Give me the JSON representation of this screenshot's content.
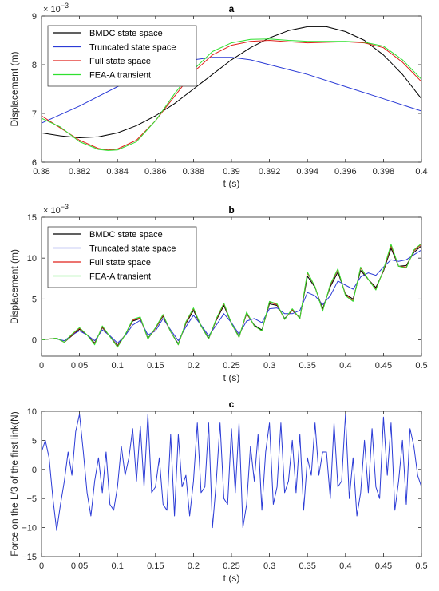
{
  "chart_data": [
    {
      "type": "line",
      "title": "a",
      "xlabel": "t (s)",
      "ylabel": "Displacement (m)",
      "y_exponent_label": "× 10",
      "y_exponent_power": "−3",
      "xlim": [
        0.38,
        0.4
      ],
      "ylim": [
        6,
        9
      ],
      "xticks": [
        "0.38",
        "0.382",
        "0.384",
        "0.386",
        "0.388",
        "0.39",
        "0.392",
        "0.394",
        "0.396",
        "0.398",
        "0.4"
      ],
      "yticks": [
        "6",
        "7",
        "8",
        "9"
      ],
      "grid": false,
      "legend_position": "top-left",
      "series": [
        {
          "name": "BMDC state space",
          "color": "#000000",
          "x": [
            0.38,
            0.381,
            0.382,
            0.383,
            0.384,
            0.385,
            0.386,
            0.387,
            0.388,
            0.389,
            0.39,
            0.391,
            0.392,
            0.393,
            0.394,
            0.395,
            0.396,
            0.397,
            0.398,
            0.399,
            0.4
          ],
          "y": [
            6.6,
            6.54,
            6.5,
            6.52,
            6.6,
            6.75,
            6.95,
            7.2,
            7.5,
            7.8,
            8.1,
            8.35,
            8.55,
            8.7,
            8.78,
            8.78,
            8.68,
            8.5,
            8.2,
            7.8,
            7.3
          ]
        },
        {
          "name": "Truncated state space",
          "color": "#2b3bd6",
          "x": [
            0.38,
            0.382,
            0.384,
            0.386,
            0.388,
            0.389,
            0.39,
            0.391,
            0.392,
            0.394,
            0.396,
            0.398,
            0.4
          ],
          "y": [
            6.8,
            7.15,
            7.55,
            7.9,
            8.1,
            8.15,
            8.15,
            8.1,
            8.0,
            7.8,
            7.55,
            7.3,
            7.05
          ]
        },
        {
          "name": "Full state space",
          "color": "#e0201b",
          "x": [
            0.38,
            0.381,
            0.382,
            0.383,
            0.3835,
            0.384,
            0.385,
            0.386,
            0.387,
            0.388,
            0.389,
            0.39,
            0.391,
            0.392,
            0.393,
            0.394,
            0.395,
            0.396,
            0.397,
            0.398,
            0.399,
            0.4
          ],
          "y": [
            6.95,
            6.7,
            6.45,
            6.28,
            6.25,
            6.27,
            6.45,
            6.85,
            7.35,
            7.85,
            8.2,
            8.4,
            8.48,
            8.5,
            8.47,
            8.45,
            8.46,
            8.47,
            8.45,
            8.35,
            8.05,
            7.65
          ]
        },
        {
          "name": "FEA-A transient",
          "color": "#2fe02f",
          "x": [
            0.38,
            0.381,
            0.382,
            0.383,
            0.3835,
            0.384,
            0.385,
            0.386,
            0.387,
            0.388,
            0.389,
            0.39,
            0.391,
            0.392,
            0.393,
            0.394,
            0.395,
            0.396,
            0.397,
            0.398,
            0.399,
            0.4
          ],
          "y": [
            6.9,
            6.72,
            6.42,
            6.26,
            6.24,
            6.25,
            6.42,
            6.85,
            7.4,
            7.9,
            8.27,
            8.45,
            8.52,
            8.53,
            8.5,
            8.48,
            8.48,
            8.48,
            8.46,
            8.38,
            8.1,
            7.7
          ]
        }
      ]
    },
    {
      "type": "line",
      "title": "b",
      "xlabel": "t (s)",
      "ylabel": "Displacement (m)",
      "y_exponent_label": "× 10",
      "y_exponent_power": "−3",
      "xlim": [
        0,
        0.5
      ],
      "ylim": [
        -2,
        15
      ],
      "xticks": [
        "0",
        "0.05",
        "0.1",
        "0.15",
        "0.2",
        "0.25",
        "0.3",
        "0.35",
        "0.4",
        "0.45",
        "0.5"
      ],
      "yticks": [
        "0",
        "5",
        "10",
        "15"
      ],
      "grid": false,
      "legend_position": "top-left",
      "series": [
        {
          "name": "BMDC state space",
          "color": "#000000",
          "x": [
            0,
            0.01,
            0.02,
            0.03,
            0.04,
            0.05,
            0.06,
            0.07,
            0.08,
            0.09,
            0.1,
            0.11,
            0.12,
            0.13,
            0.14,
            0.15,
            0.16,
            0.17,
            0.18,
            0.19,
            0.2,
            0.21,
            0.22,
            0.23,
            0.24,
            0.25,
            0.26,
            0.27,
            0.28,
            0.29,
            0.3,
            0.31,
            0.32,
            0.33,
            0.34,
            0.35,
            0.36,
            0.37,
            0.38,
            0.39,
            0.4,
            0.41,
            0.42,
            0.43,
            0.44,
            0.45,
            0.46,
            0.47,
            0.48,
            0.49,
            0.5
          ],
          "y": [
            0,
            0.1,
            0.2,
            -0.3,
            0.5,
            1.3,
            0.6,
            -0.4,
            1.5,
            0.4,
            -0.7,
            0.6,
            2.3,
            2.6,
            0.2,
            1.4,
            2.9,
            1.0,
            -0.5,
            2.0,
            3.6,
            1.7,
            0.2,
            2.4,
            4.2,
            2.0,
            0.4,
            3.2,
            1.8,
            1.2,
            4.4,
            4.2,
            2.6,
            3.6,
            2.7,
            7.8,
            6.4,
            3.8,
            6.5,
            8.3,
            5.6,
            5.0,
            8.5,
            7.4,
            6.4,
            8.4,
            11.2,
            9.0,
            9.1,
            10.7,
            11.5
          ]
        },
        {
          "name": "Truncated state space",
          "color": "#2b3bd6",
          "x": [
            0,
            0.01,
            0.02,
            0.03,
            0.04,
            0.05,
            0.06,
            0.07,
            0.08,
            0.09,
            0.1,
            0.11,
            0.12,
            0.13,
            0.14,
            0.15,
            0.16,
            0.17,
            0.18,
            0.19,
            0.2,
            0.21,
            0.22,
            0.23,
            0.24,
            0.25,
            0.26,
            0.27,
            0.28,
            0.29,
            0.3,
            0.31,
            0.32,
            0.33,
            0.34,
            0.35,
            0.36,
            0.37,
            0.38,
            0.39,
            0.4,
            0.41,
            0.42,
            0.43,
            0.44,
            0.45,
            0.46,
            0.47,
            0.48,
            0.49,
            0.5
          ],
          "y": [
            0,
            0.1,
            0.1,
            -0.1,
            0.6,
            1.1,
            0.6,
            -0.1,
            1.2,
            0.5,
            -0.4,
            0.5,
            1.8,
            2.4,
            0.6,
            1.1,
            2.6,
            1.2,
            -0.1,
            1.6,
            3.0,
            1.8,
            0.5,
            1.8,
            3.2,
            2.1,
            0.7,
            2.3,
            2.6,
            2.1,
            3.8,
            3.9,
            3.2,
            3.2,
            3.6,
            5.8,
            5.4,
            4.3,
            5.4,
            7.2,
            6.7,
            6.2,
            7.7,
            8.2,
            7.9,
            8.9,
            9.8,
            9.6,
            9.8,
            10.4,
            11.0
          ]
        },
        {
          "name": "Full state space",
          "color": "#e0201b",
          "x": [
            0,
            0.01,
            0.02,
            0.03,
            0.04,
            0.05,
            0.06,
            0.07,
            0.08,
            0.09,
            0.1,
            0.11,
            0.12,
            0.13,
            0.14,
            0.15,
            0.16,
            0.17,
            0.18,
            0.19,
            0.2,
            0.21,
            0.22,
            0.23,
            0.24,
            0.25,
            0.26,
            0.27,
            0.28,
            0.29,
            0.3,
            0.31,
            0.32,
            0.33,
            0.34,
            0.35,
            0.36,
            0.37,
            0.38,
            0.39,
            0.4,
            0.41,
            0.42,
            0.43,
            0.44,
            0.45,
            0.46,
            0.47,
            0.48,
            0.49,
            0.5
          ],
          "y": [
            0,
            0.1,
            0.2,
            -0.3,
            0.6,
            1.4,
            0.6,
            -0.5,
            1.6,
            0.4,
            -0.8,
            0.6,
            2.4,
            2.7,
            0.1,
            1.4,
            3.0,
            1.0,
            -0.6,
            2.1,
            3.8,
            1.7,
            0.1,
            2.5,
            4.4,
            2.0,
            0.3,
            3.3,
            1.7,
            1.1,
            4.6,
            4.3,
            2.5,
            3.7,
            2.6,
            8.2,
            6.5,
            3.6,
            6.7,
            8.6,
            5.5,
            4.8,
            8.8,
            7.4,
            6.2,
            8.5,
            11.5,
            9.0,
            8.9,
            10.9,
            11.7
          ]
        },
        {
          "name": "FEA-A transient",
          "color": "#2fe02f",
          "x": [
            0,
            0.01,
            0.02,
            0.03,
            0.04,
            0.05,
            0.06,
            0.07,
            0.08,
            0.09,
            0.1,
            0.11,
            0.12,
            0.13,
            0.14,
            0.15,
            0.16,
            0.17,
            0.18,
            0.19,
            0.2,
            0.21,
            0.22,
            0.23,
            0.24,
            0.25,
            0.26,
            0.27,
            0.28,
            0.29,
            0.3,
            0.31,
            0.32,
            0.33,
            0.34,
            0.35,
            0.36,
            0.37,
            0.38,
            0.39,
            0.4,
            0.41,
            0.42,
            0.43,
            0.44,
            0.45,
            0.46,
            0.47,
            0.48,
            0.49,
            0.5
          ],
          "y": [
            0,
            0.1,
            0.2,
            -0.3,
            0.7,
            1.5,
            0.6,
            -0.6,
            1.7,
            0.4,
            -0.9,
            0.6,
            2.5,
            2.8,
            0.1,
            1.5,
            3.1,
            1.0,
            -0.6,
            2.2,
            3.9,
            1.7,
            0.1,
            2.6,
            4.5,
            2.0,
            0.3,
            3.4,
            1.7,
            1.1,
            4.7,
            4.4,
            2.5,
            3.8,
            2.6,
            8.3,
            6.5,
            3.5,
            6.8,
            8.7,
            5.4,
            4.7,
            8.9,
            7.4,
            6.1,
            8.6,
            11.7,
            9.0,
            8.8,
            11.0,
            11.8
          ]
        }
      ]
    },
    {
      "type": "line",
      "title": "c",
      "xlabel": "t (s)",
      "ylabel": "Force on the L/3 of the first link(N)",
      "xlim": [
        0,
        0.5
      ],
      "ylim": [
        -15,
        10
      ],
      "xticks": [
        "0",
        "0.05",
        "0.1",
        "0.15",
        "0.2",
        "0.25",
        "0.3",
        "0.35",
        "0.4",
        "0.45",
        "0.5"
      ],
      "yticks": [
        "-15",
        "-10",
        "-5",
        "0",
        "5",
        "10"
      ],
      "grid": false,
      "series": [
        {
          "color": "#2b3bd6",
          "x": [
            0,
            0.005,
            0.01,
            0.015,
            0.02,
            0.025,
            0.03,
            0.035,
            0.04,
            0.045,
            0.05,
            0.055,
            0.06,
            0.065,
            0.07,
            0.075,
            0.08,
            0.085,
            0.09,
            0.095,
            0.1,
            0.105,
            0.11,
            0.115,
            0.12,
            0.125,
            0.13,
            0.135,
            0.14,
            0.145,
            0.15,
            0.155,
            0.16,
            0.165,
            0.17,
            0.175,
            0.18,
            0.185,
            0.19,
            0.195,
            0.2,
            0.205,
            0.21,
            0.215,
            0.22,
            0.225,
            0.23,
            0.235,
            0.24,
            0.245,
            0.25,
            0.255,
            0.26,
            0.265,
            0.27,
            0.275,
            0.28,
            0.285,
            0.29,
            0.295,
            0.3,
            0.305,
            0.31,
            0.315,
            0.32,
            0.325,
            0.33,
            0.335,
            0.34,
            0.345,
            0.35,
            0.355,
            0.36,
            0.365,
            0.37,
            0.375,
            0.38,
            0.385,
            0.39,
            0.395,
            0.4,
            0.405,
            0.41,
            0.415,
            0.42,
            0.425,
            0.43,
            0.435,
            0.44,
            0.445,
            0.45,
            0.455,
            0.46,
            0.465,
            0.47,
            0.475,
            0.48,
            0.485,
            0.49,
            0.495,
            0.5
          ],
          "y": [
            3,
            5,
            2,
            -5,
            -10.5,
            -6,
            -2,
            3,
            -1,
            6.5,
            9.5,
            3,
            -4,
            -8,
            -2,
            2,
            -4,
            3,
            -6,
            -7,
            -3,
            4,
            -1,
            2,
            7,
            -2,
            7.5,
            -3,
            9.5,
            -4,
            -3,
            2,
            -6,
            -7,
            6,
            -8,
            6,
            -3,
            -1,
            -8,
            -2,
            8,
            -4,
            -3,
            8,
            -10,
            -2,
            8,
            -5,
            -6,
            7,
            -4,
            8,
            -10,
            -6,
            4,
            -2,
            6,
            -7,
            3,
            8,
            -6,
            -3,
            8,
            -4,
            -2,
            5,
            -4,
            6,
            -7,
            2,
            -1,
            8,
            -1,
            3,
            3,
            -5,
            8,
            -3,
            -2,
            9.5,
            -5,
            2,
            -8,
            -4,
            5,
            -4,
            7,
            -3,
            -5,
            9,
            -1,
            8,
            -7,
            -2,
            5,
            -6,
            7,
            4,
            -1,
            -3
          ]
        }
      ]
    }
  ]
}
